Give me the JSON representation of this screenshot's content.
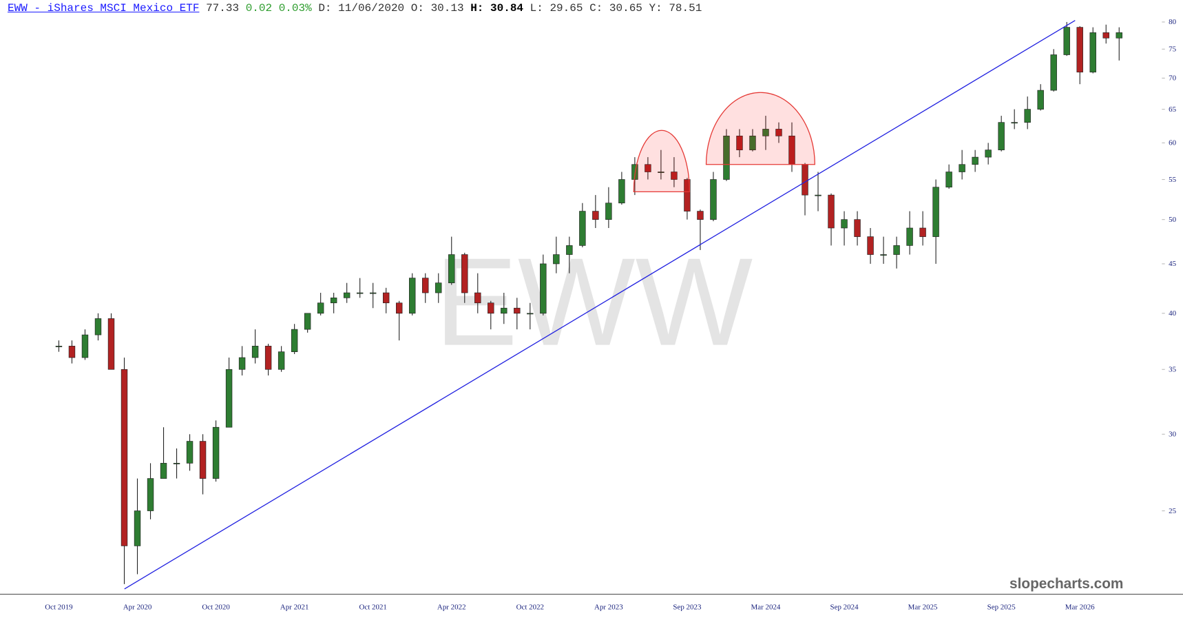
{
  "header": {
    "ticker_link": "EWW - iShares MSCI Mexico ETF",
    "last": "77.33",
    "change": "0.02",
    "change_pct": "0.03%",
    "date_label": "D:",
    "date": "11/06/2020",
    "open_label": "O:",
    "open": "30.13",
    "high_label": "H:",
    "high": "30.84",
    "low_label": "L:",
    "low": "29.65",
    "close_label": "C:",
    "close": "30.65",
    "y_label": "Y:",
    "y": "78.51"
  },
  "watermark": "EWW",
  "footer": "slopecharts.com",
  "chart_data": {
    "type": "candlestick",
    "log_scale": true,
    "grid": false,
    "up_color": "#2e7d32",
    "down_color": "#b22222",
    "ylim": [
      20.5,
      84.3
    ],
    "yticks": [
      25,
      30,
      35,
      40,
      45,
      50,
      55,
      60,
      65,
      70,
      75,
      80
    ],
    "categories": [
      "Oct 2019",
      null,
      null,
      null,
      null,
      null,
      "Apr 2020",
      null,
      null,
      null,
      null,
      null,
      "Oct 2020",
      null,
      null,
      null,
      null,
      null,
      "Apr 2021",
      null,
      null,
      null,
      null,
      null,
      "Oct 2021",
      null,
      null,
      null,
      null,
      null,
      "Apr 2022",
      null,
      null,
      null,
      null,
      null,
      "Oct 2022",
      null,
      null,
      null,
      null,
      null,
      "Apr 2023",
      null,
      null,
      null,
      null,
      null,
      "Sep 2023",
      null,
      null,
      null,
      null,
      null,
      "Mar 2024",
      null,
      null,
      null,
      null,
      null,
      "Sep 2024",
      null,
      null,
      null,
      null,
      null,
      "Mar 2025",
      null,
      null,
      null,
      null,
      null,
      "Sep 2025",
      null,
      null,
      null,
      null,
      null,
      "Mar 2026",
      null,
      null,
      null
    ],
    "ohlc": [
      [
        37,
        37.5,
        36.5,
        37
      ],
      [
        37,
        37.5,
        35.5,
        36
      ],
      [
        36,
        38.5,
        35.8,
        38
      ],
      [
        38,
        40,
        37.5,
        39.5
      ],
      [
        39.5,
        40,
        35,
        35
      ],
      [
        35,
        36,
        21,
        23
      ],
      [
        23,
        27,
        21.5,
        25
      ],
      [
        25,
        28,
        24.5,
        27
      ],
      [
        27,
        30.5,
        27,
        28
      ],
      [
        28,
        29,
        27,
        28
      ],
      [
        28,
        30,
        27.5,
        29.5
      ],
      [
        29.5,
        30,
        26,
        27
      ],
      [
        27,
        31,
        26.8,
        30.5
      ],
      [
        30.5,
        36,
        30.5,
        35
      ],
      [
        35,
        37,
        34.5,
        36
      ],
      [
        36,
        38.5,
        35.5,
        37
      ],
      [
        37,
        37.2,
        34.5,
        35
      ],
      [
        35,
        37,
        34.8,
        36.5
      ],
      [
        36.5,
        39,
        36.3,
        38.5
      ],
      [
        38.5,
        40,
        38.2,
        40
      ],
      [
        40,
        42,
        39.8,
        41
      ],
      [
        41,
        42,
        40,
        41.5
      ],
      [
        41.5,
        43,
        41,
        42
      ],
      [
        42,
        43.5,
        41.5,
        42
      ],
      [
        42,
        43,
        40.5,
        42
      ],
      [
        42,
        42.5,
        40,
        41
      ],
      [
        41,
        41.2,
        37.5,
        40
      ],
      [
        40,
        44,
        39.8,
        43.5
      ],
      [
        43.5,
        44,
        41,
        42
      ],
      [
        42,
        44,
        41,
        43
      ],
      [
        43,
        48,
        42.8,
        46
      ],
      [
        46,
        46.2,
        41,
        42
      ],
      [
        42,
        44,
        40,
        41
      ],
      [
        41,
        41.2,
        38.5,
        40
      ],
      [
        40,
        42,
        39,
        40.5
      ],
      [
        40.5,
        41.5,
        38.5,
        40
      ],
      [
        40,
        41,
        38.5,
        40
      ],
      [
        40,
        46,
        39.8,
        45
      ],
      [
        45,
        48,
        44,
        46
      ],
      [
        46,
        48,
        44,
        47
      ],
      [
        47,
        52,
        46.8,
        51
      ],
      [
        51,
        53,
        49,
        50
      ],
      [
        50,
        54,
        49,
        52
      ],
      [
        52,
        56,
        51.8,
        55
      ],
      [
        55,
        58,
        53,
        57
      ],
      [
        57,
        58,
        55,
        56
      ],
      [
        56,
        59,
        55,
        56
      ],
      [
        56,
        58,
        54,
        55
      ],
      [
        55,
        55.2,
        50,
        51
      ],
      [
        51,
        51.2,
        46.5,
        50
      ],
      [
        50,
        56,
        49.8,
        55
      ],
      [
        55,
        62,
        54.8,
        61
      ],
      [
        61,
        62,
        58,
        59
      ],
      [
        59,
        62,
        58.8,
        61
      ],
      [
        61,
        64,
        59,
        62
      ],
      [
        62,
        63,
        60,
        61
      ],
      [
        61,
        63,
        56,
        57
      ],
      [
        57,
        57.2,
        50.5,
        53
      ],
      [
        53,
        56,
        51,
        53
      ],
      [
        53,
        53.2,
        47,
        49
      ],
      [
        49,
        51,
        47,
        50
      ],
      [
        50,
        51,
        47,
        48
      ],
      [
        48,
        49,
        45,
        46
      ],
      [
        46,
        48,
        45,
        46
      ],
      [
        46,
        48,
        44.5,
        47
      ],
      [
        47,
        51,
        46,
        49
      ],
      [
        49,
        51,
        47,
        48
      ],
      [
        48,
        55,
        45,
        54
      ],
      [
        54,
        57,
        53.8,
        56
      ],
      [
        56,
        59,
        55,
        57
      ],
      [
        57,
        59,
        56,
        58
      ],
      [
        58,
        60,
        57,
        59
      ],
      [
        59,
        64,
        58.8,
        63
      ],
      [
        63,
        65,
        62,
        63
      ],
      [
        63,
        67,
        62,
        65
      ],
      [
        65,
        69,
        64.8,
        68
      ],
      [
        68,
        75,
        67.8,
        74
      ],
      [
        74,
        80,
        73.8,
        79
      ],
      [
        79,
        79.2,
        69,
        71
      ],
      [
        71,
        79,
        70.8,
        78
      ],
      [
        78,
        79.5,
        76,
        77
      ],
      [
        77,
        79,
        73,
        78
      ]
    ]
  }
}
